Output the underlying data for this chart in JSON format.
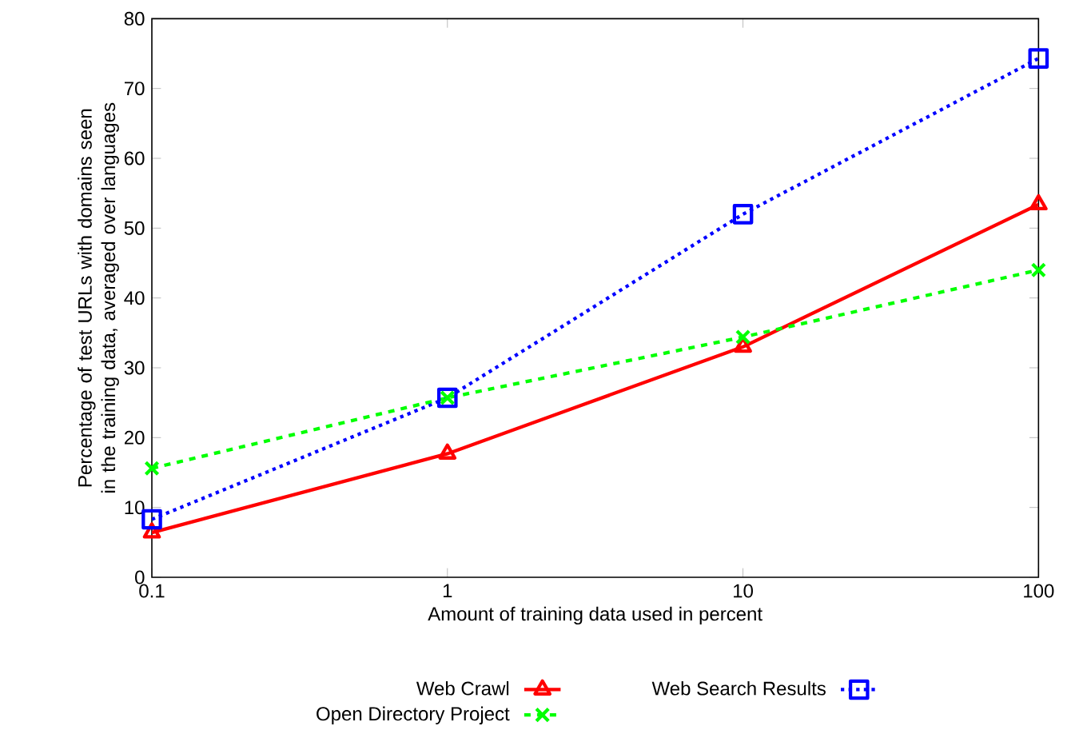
{
  "chart_data": {
    "type": "line",
    "xlabel": "Amount of training data used in percent",
    "ylabel": "Percentage of test URLs with domains seen in the training data, averaged over languages",
    "x": [
      0.1,
      1,
      10,
      100
    ],
    "log": "x",
    "xlim": [
      0.1,
      100
    ],
    "xticks": [
      0.1,
      1,
      10,
      100
    ],
    "ylim": [
      0,
      80
    ],
    "yticks": [
      0,
      10,
      20,
      30,
      40,
      50,
      60,
      70,
      80
    ],
    "grid": false,
    "legend": "bottom",
    "series": [
      {
        "name": "Web Crawl",
        "color": "#ff0000",
        "marker": "triangle",
        "line_style": "solid",
        "values": [
          6.4,
          17.7,
          33,
          53.4
        ]
      },
      {
        "name": "Web Search Results",
        "color": "#0000ff",
        "marker": "square",
        "line_style": "dotted",
        "values": [
          8.3,
          25.7,
          52,
          74.3
        ]
      },
      {
        "name": "Open Directory Project",
        "color": "#00ff00",
        "marker": "cross",
        "line_style": "dashed",
        "values": [
          15.6,
          25.7,
          34.4,
          44
        ]
      }
    ]
  }
}
